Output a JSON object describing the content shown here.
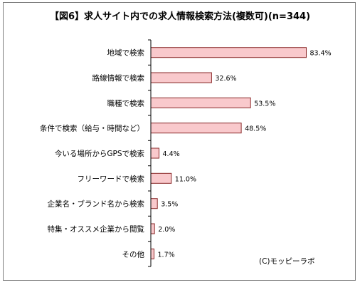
{
  "chart_data": {
    "type": "bar",
    "orientation": "horizontal",
    "title": "【図6】求人サイト内での求人情報検索方法(複数可)(n=344)",
    "categories": [
      "地域で検索",
      "路線情報で検索",
      "職種で検索",
      "条件で検索（給与・時間など）",
      "今いる場所からGPSで検索",
      "フリーワードで検索",
      "企業名・ブランド名から検索",
      "特集・オススメ企業から閲覧",
      "その他"
    ],
    "values": [
      83.4,
      32.6,
      53.5,
      48.5,
      4.4,
      11.0,
      3.5,
      2.0,
      1.7
    ],
    "value_labels": [
      "83.4%",
      "32.6%",
      "53.5%",
      "48.5%",
      "4.4%",
      "11.0%",
      "3.5%",
      "2.0%",
      "1.7%"
    ],
    "xlim": [
      0,
      100
    ],
    "grid": false,
    "legend": "none",
    "bar_color": "#f9c9cc",
    "bar_border_color": "#8a2a2a",
    "axis_color": "#000000"
  },
  "credit": "(C)モッピーラボ"
}
